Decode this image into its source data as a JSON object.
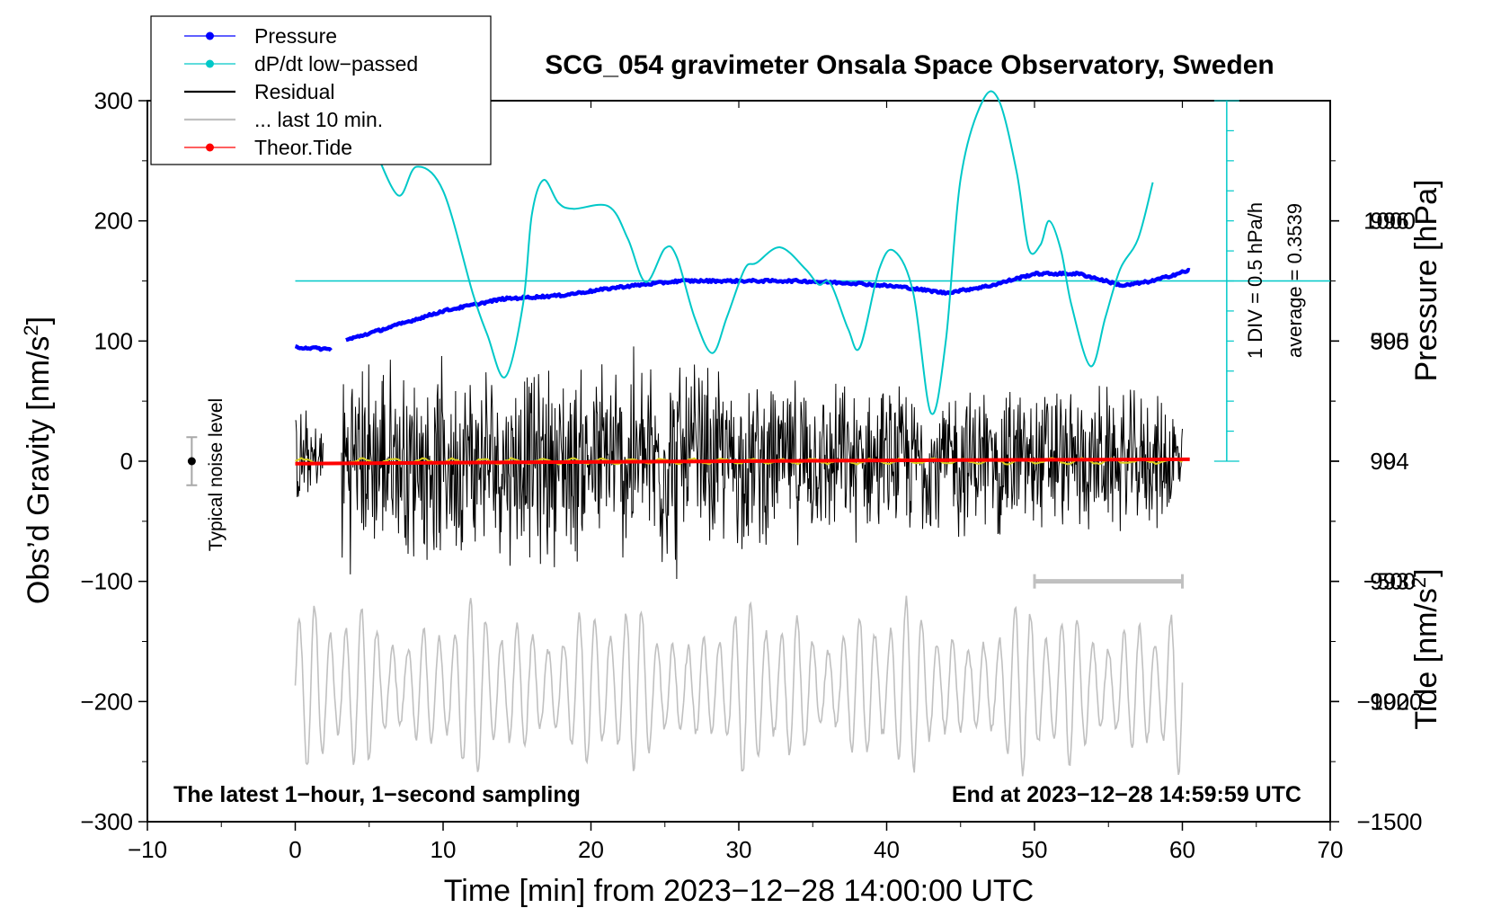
{
  "chart_data": {
    "type": "line",
    "title": "SCG_054 gravimeter Onsala Space Observatory, Sweden",
    "xlabel": "Time [min] from 2023−12−28 14:00:00 UTC",
    "ylabel_left": "Obs’d Gravity [nm/s",
    "ylabel_left_sup": "2",
    "ylabel_left_close": "]",
    "ylabel_right_pressure": "Pressure [hPa]",
    "ylabel_right_tide": "Tide [nm/s",
    "ylabel_right_tide_sup": "2",
    "ylabel_right_tide_close": "]",
    "xlim": [
      -10,
      70
    ],
    "ylim_left": [
      -300,
      300
    ],
    "x_ticks": [
      {
        "v": -10,
        "label": "−10"
      },
      {
        "v": 0,
        "label": "0"
      },
      {
        "v": 10,
        "label": "10"
      },
      {
        "v": 20,
        "label": "20"
      },
      {
        "v": 30,
        "label": "30"
      },
      {
        "v": 40,
        "label": "40"
      },
      {
        "v": 50,
        "label": "50"
      },
      {
        "v": 60,
        "label": "60"
      },
      {
        "v": 70,
        "label": "70"
      }
    ],
    "y_ticks_left": [
      {
        "v": 300,
        "label": "300"
      },
      {
        "v": 200,
        "label": "200"
      },
      {
        "v": 100,
        "label": "100"
      },
      {
        "v": 0,
        "label": "0"
      },
      {
        "v": -100,
        "label": "−100"
      },
      {
        "v": -200,
        "label": "−200"
      },
      {
        "v": -300,
        "label": "−300"
      }
    ],
    "pressure_axis": {
      "range": [
        991,
        997
      ],
      "ticks": [
        {
          "v": 996,
          "label": "996"
        },
        {
          "v": 995,
          "label": "995"
        },
        {
          "v": 994,
          "label": "994"
        },
        {
          "v": 993,
          "label": "993"
        },
        {
          "v": 992,
          "label": "992"
        }
      ]
    },
    "tide_axis": {
      "range": [
        -1500,
        1500
      ],
      "ticks": [
        {
          "v": 1000,
          "label": "1000"
        },
        {
          "v": 500,
          "label": "500"
        },
        {
          "v": 0,
          "label": "0"
        },
        {
          "v": -500,
          "label": "−500"
        },
        {
          "v": -1000,
          "label": "−1000"
        },
        {
          "v": -1500,
          "label": "−1500"
        }
      ]
    },
    "series": [
      {
        "name": "Pressure",
        "color": "#0000ff",
        "axis": "pressure",
        "x": [
          0,
          2.5,
          3.5,
          6,
          10,
          14,
          18,
          22,
          26,
          30,
          34,
          38,
          41,
          44,
          47,
          50,
          53,
          56,
          58,
          60.5
        ],
        "values": [
          994.95,
          994.93,
          995.01,
          995.1,
          995.25,
          995.35,
          995.38,
          995.45,
          995.5,
          995.5,
          995.5,
          995.48,
          995.45,
          995.4,
          995.46,
          995.56,
          995.56,
          995.46,
          995.5,
          995.59
        ]
      },
      {
        "name": "dP/dt low−passed",
        "color": "#00c8c8",
        "x": [
          5.5,
          7,
          8.2,
          10,
          12,
          13,
          14.2,
          15.4,
          16,
          16.8,
          17.8,
          18.8,
          21.2,
          22.5,
          23.7,
          25,
          25.8,
          27,
          28.2,
          29.2,
          30.4,
          31.2,
          32.8,
          34.5,
          35.4,
          36.2,
          37.4,
          38.2,
          39.5,
          40.5,
          41.8,
          43,
          44,
          45,
          46.5,
          47.6,
          48.8,
          49.6,
          50.4,
          51,
          51.8,
          52.5,
          53.8,
          54.8,
          55.8,
          57,
          58
        ],
        "values": [
          256,
          221,
          245,
          225,
          140,
          105,
          70,
          130,
          205,
          234,
          215,
          210,
          212,
          185,
          149,
          177,
          170,
          120,
          90,
          120,
          160,
          165,
          178,
          160,
          147,
          148,
          110,
          95,
          160,
          175,
          140,
          40,
          100,
          235,
          300,
          300,
          240,
          177,
          180,
          200,
          175,
          130,
          79,
          120,
          160,
          185,
          232
        ]
      },
      {
        "name": "Residual",
        "color": "#000000",
        "note": "1-second residual gravity, amplitude approx. ±50 nm/s² with bursts up to ±110",
        "envelope_x": [
          0,
          2,
          3,
          10,
          20,
          25,
          30,
          40,
          50,
          60
        ],
        "envelope_values": [
          50,
          40,
          100,
          90,
          95,
          110,
          80,
          70,
          75,
          60
        ]
      },
      {
        "name": "... last 10 min.",
        "color": "#c0c0c0",
        "x": [
          50,
          60
        ],
        "values": [
          -100,
          -100
        ]
      },
      {
        "name": "Theor.Tide",
        "color": "#ff0000",
        "axis": "tide",
        "x": [
          0,
          15,
          30,
          45,
          60.5
        ],
        "values": [
          -10,
          -5,
          0,
          5,
          8
        ]
      }
    ],
    "smoothed_residual": {
      "color": "#d8d020",
      "x": [
        0,
        60
      ],
      "values": [
        0,
        0
      ]
    },
    "tide_residual_trace": {
      "color": "#c0c0c0",
      "note": "gray oscillating trace centred near −190 nm/s² (left axis), amplitude up to ±75"
    },
    "noise_level": {
      "label": "Typical noise level",
      "center": 0,
      "half_range": 20,
      "x": -7
    },
    "legend_position": "top-left",
    "annotations": {
      "bottom_left": "The latest 1−hour, 1−second sampling",
      "bottom_right": "End at 2023−12−28 14:59:59 UTC",
      "div_label": "1 DIV = 0.5 hPa/h",
      "average_label": "average = 0.3539"
    },
    "dpdt_scale": {
      "x": 63,
      "baseline_value": 150,
      "top_value": 300,
      "bottom_value": 0,
      "divisions": 12
    }
  },
  "colors": {
    "pressure": "#0000ff",
    "dpdt": "#00c8c8",
    "residual": "#000000",
    "last10": "#c0c0c0",
    "tide": "#ff0000",
    "smooth": "#d8d020"
  }
}
